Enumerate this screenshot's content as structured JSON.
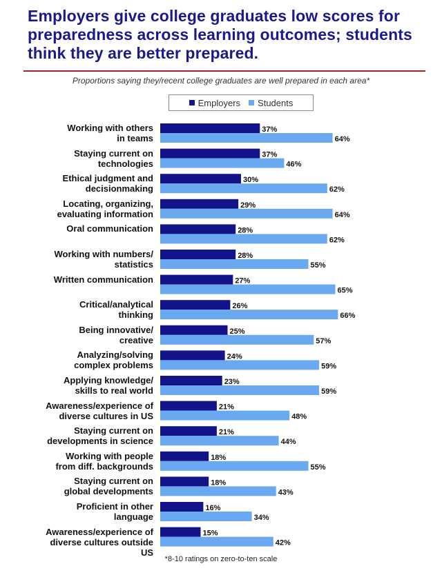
{
  "title": "Employers give college graduates low scores for preparedness across learning outcomes; students think they are better prepared.",
  "subtitle": "Proportions saying they/recent college graduates are well prepared in each area*",
  "footnote": "*8-10 ratings on zero-to-ten scale",
  "colors": {
    "employers": "#14148a",
    "students": "#6aa8ef",
    "title": "#1a1a8c",
    "rule": "#a32020"
  },
  "chart_data": {
    "type": "bar",
    "orientation": "horizontal",
    "title": "Employers give college graduates low scores for preparedness across learning outcomes; students think they are better prepared.",
    "subtitle": "Proportions saying they/recent college graduates are well prepared in each area*",
    "xlabel": "",
    "ylabel": "",
    "xlim": [
      0,
      100
    ],
    "legend": "top-center",
    "categories": [
      "Working with others in teams",
      "Staying current on technologies",
      "Ethical judgment and decisionmaking",
      "Locating, organizing, evaluating information",
      "Oral communication",
      "Working with numbers/ statistics",
      "Written communication",
      "Critical/analytical thinking",
      "Being innovative/ creative",
      "Analyzing/solving complex problems",
      "Applying knowledge/ skills to real world",
      "Awareness/experience of diverse cultures in US",
      "Staying current on developments in science",
      "Working with people from diff. backgrounds",
      "Staying current on global developments",
      "Proficient in other language",
      "Awareness/experience of diverse cultures outside US"
    ],
    "series": [
      {
        "name": "Employers",
        "values": [
          37,
          37,
          30,
          29,
          28,
          28,
          27,
          26,
          25,
          24,
          23,
          21,
          21,
          18,
          18,
          16,
          15
        ]
      },
      {
        "name": "Students",
        "values": [
          64,
          46,
          62,
          64,
          62,
          55,
          65,
          66,
          57,
          59,
          59,
          48,
          44,
          55,
          43,
          34,
          42
        ]
      }
    ]
  },
  "row_labels": [
    [
      "Working with others",
      "in teams"
    ],
    [
      "Staying current on",
      "technologies"
    ],
    [
      "Ethical judgment and",
      "decisionmaking"
    ],
    [
      "Locating, organizing,",
      "evaluating information"
    ],
    [
      "Oral communication"
    ],
    [
      "Working with numbers/",
      "statistics"
    ],
    [
      "Written communication"
    ],
    [
      "Critical/analytical",
      "thinking"
    ],
    [
      "Being innovative/",
      "creative"
    ],
    [
      "Analyzing/solving",
      "complex problems"
    ],
    [
      "Applying knowledge/",
      "skills to real world"
    ],
    [
      "Awareness/experience of",
      "diverse cultures in US"
    ],
    [
      "Staying current on",
      "developments in science"
    ],
    [
      "Working with people",
      "from diff. backgrounds"
    ],
    [
      "Staying current on",
      "global developments"
    ],
    [
      "Proficient in other",
      "language"
    ],
    [
      "Awareness/experience of",
      "diverse cultures outside",
      "US"
    ]
  ]
}
